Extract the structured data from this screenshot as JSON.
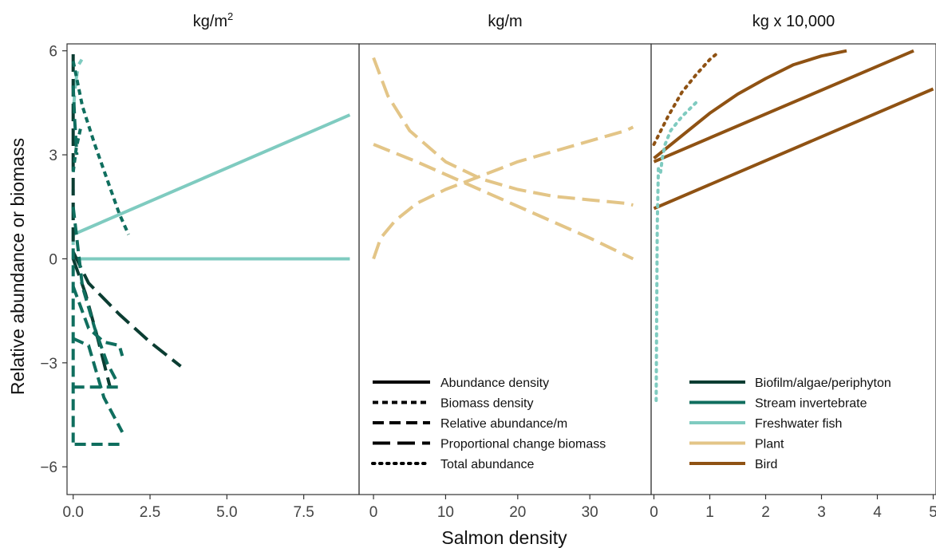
{
  "chart_data": {
    "type": "line",
    "ylabel": "Relative abundance or biomass",
    "xlabel": "Salmon density",
    "ylim": [
      -6.8,
      6.2
    ],
    "yticks": [
      -6,
      -3,
      0,
      3,
      6
    ],
    "yticklabels": [
      "−6",
      "−3",
      "0",
      "3",
      "6"
    ],
    "grid": false,
    "colors": {
      "Biofilm/algae/periphyton": "#0b3d32",
      "Stream invertebrate": "#0f6e5e",
      "Freshwater fish": "#7fcbc0",
      "Plant": "#e3c587",
      "Bird": "#8f5213"
    },
    "legend_linetype": {
      "entries": [
        {
          "label": "Abundance density",
          "dash": "solid"
        },
        {
          "label": "Biomass density",
          "dash": "short"
        },
        {
          "label": "Relative abundance/m",
          "dash": "dashed"
        },
        {
          "label": "Proportional change biomass",
          "dash": "longdash"
        },
        {
          "label": "Total abundance",
          "dash": "dotted"
        }
      ]
    },
    "legend_color": {
      "entries": [
        {
          "label": "Biofilm/algae/periphyton",
          "color": "#0b3d32"
        },
        {
          "label": "Stream invertebrate",
          "color": "#0f6e5e"
        },
        {
          "label": "Freshwater fish",
          "color": "#7fcbc0"
        },
        {
          "label": "Plant",
          "color": "#e3c587"
        },
        {
          "label": "Bird",
          "color": "#8f5213"
        }
      ]
    },
    "panels": [
      {
        "title_base": "kg/m",
        "title_sup": "2",
        "xlim": [
          -0.2,
          9.3
        ],
        "xticks": [
          0,
          2.5,
          5,
          7.5
        ],
        "xticklabels": [
          "0.0",
          "2.5",
          "5.0",
          "7.5"
        ],
        "series": [
          {
            "group": "Freshwater fish",
            "dash": "solid",
            "x": [
              0,
              9
            ],
            "y": [
              0.7,
              4.15
            ]
          },
          {
            "group": "Freshwater fish",
            "dash": "solid",
            "x": [
              0,
              9
            ],
            "y": [
              0,
              0
            ]
          },
          {
            "group": "Freshwater fish",
            "dash": "longdash",
            "x": [
              0,
              0.08,
              0.18,
              0.28
            ],
            "y": [
              4.2,
              5.1,
              5.6,
              5.75
            ]
          },
          {
            "group": "Freshwater fish",
            "dash": "longdash",
            "x": [
              0,
              0,
              0
            ],
            "y": [
              0.4,
              1.2,
              2.0
            ]
          },
          {
            "group": "Biofilm/algae/periphyton",
            "dash": "longdash",
            "x": [
              0,
              0,
              0,
              0
            ],
            "y": [
              5.9,
              4.0,
              2.0,
              0.5
            ]
          },
          {
            "group": "Biofilm/algae/periphyton",
            "dash": "longdash",
            "x": [
              0,
              0.5,
              1.5,
              2.5,
              3.5
            ],
            "y": [
              0.2,
              -0.7,
              -1.6,
              -2.4,
              -3.1
            ]
          },
          {
            "group": "Biofilm/algae/periphyton",
            "dash": "longdash",
            "x": [
              0,
              0.4,
              0.8,
              1.2
            ],
            "y": [
              0,
              -1.0,
              -2.3,
              -3.7
            ]
          },
          {
            "group": "Stream invertebrate",
            "dash": "short",
            "x": [
              0,
              0.3,
              0.7,
              1.1,
              1.5,
              1.8
            ],
            "y": [
              5.7,
              4.4,
              3.3,
              2.3,
              1.3,
              0.7
            ]
          },
          {
            "group": "Stream invertebrate",
            "dash": "short",
            "x": [
              0,
              0.1,
              0.25
            ],
            "y": [
              2.5,
              3.2,
              3.8
            ]
          },
          {
            "group": "Stream invertebrate",
            "dash": "dashed",
            "x": [
              0,
              0,
              0,
              0
            ],
            "y": [
              0.3,
              -2,
              -4,
              -5.3
            ]
          },
          {
            "group": "Stream invertebrate",
            "dash": "dashed",
            "x": [
              0.05,
              0.5,
              1.0,
              1.6
            ],
            "y": [
              -5.35,
              -5.35,
              -5.35,
              -5.35
            ]
          },
          {
            "group": "Stream invertebrate",
            "dash": "dashed",
            "x": [
              0,
              0.5,
              1.0,
              1.6
            ],
            "y": [
              -3.7,
              -3.7,
              -3.7,
              -3.7
            ]
          },
          {
            "group": "Stream invertebrate",
            "dash": "dashed",
            "x": [
              0,
              0.5,
              1.0,
              1.6
            ],
            "y": [
              -2.3,
              -2.5,
              -4.0,
              -5.0
            ]
          },
          {
            "group": "Stream invertebrate",
            "dash": "dashed",
            "x": [
              0,
              0.5,
              1.0,
              1.5,
              1.6
            ],
            "y": [
              -0.8,
              -2.0,
              -2.4,
              -2.5,
              -2.8
            ]
          },
          {
            "group": "Stream invertebrate",
            "dash": "dashed",
            "x": [
              0,
              0.3,
              0.7,
              1.1,
              1.4
            ],
            "y": [
              1.5,
              -0.8,
              -2.0,
              -3.0,
              -3.5
            ]
          },
          {
            "group": "Stream invertebrate",
            "dash": "dashed",
            "x": [
              0,
              0.05,
              0.12
            ],
            "y": [
              5.0,
              4.0,
              3.0
            ]
          }
        ]
      },
      {
        "title_base": "kg/m",
        "title_sup": "",
        "xlim": [
          -2,
          38.5
        ],
        "xticks": [
          0,
          10,
          20,
          30
        ],
        "xticklabels": [
          "0",
          "10",
          "20",
          "30"
        ],
        "series": [
          {
            "group": "Plant",
            "dash": "longdash",
            "x": [
              0,
              2,
              5,
              10,
              15,
              20,
              25,
              30,
              35,
              36
            ],
            "y": [
              5.8,
              4.7,
              3.7,
              2.8,
              2.3,
              2.0,
              1.8,
              1.7,
              1.6,
              1.55
            ]
          },
          {
            "group": "Plant",
            "dash": "longdash",
            "x": [
              0,
              6,
              12,
              18,
              24,
              30,
              36
            ],
            "y": [
              3.3,
              2.8,
              2.25,
              1.7,
              1.15,
              0.6,
              0
            ]
          },
          {
            "group": "Plant",
            "dash": "longdash",
            "x": [
              0,
              1,
              3,
              6,
              10,
              15,
              20,
              25,
              30,
              35,
              36
            ],
            "y": [
              0,
              0.6,
              1.1,
              1.6,
              2.0,
              2.4,
              2.8,
              3.1,
              3.4,
              3.7,
              3.8
            ]
          }
        ]
      },
      {
        "title_base": "kg x 10,000",
        "title_sup": "",
        "xlim": [
          -0.05,
          5.05
        ],
        "xticks": [
          0,
          1,
          2,
          3,
          4,
          5
        ],
        "xticklabels": [
          "0",
          "1",
          "2",
          "3",
          "4",
          "5"
        ],
        "series": [
          {
            "group": "Bird",
            "dash": "dotted",
            "x": [
              0,
              0.25,
              0.5,
              0.75,
              1.0,
              1.15
            ],
            "y": [
              3.3,
              4.1,
              4.8,
              5.3,
              5.75,
              5.95
            ]
          },
          {
            "group": "Bird",
            "dash": "solid",
            "x": [
              0,
              0.5,
              1.0,
              1.5,
              2.0,
              2.5,
              3.0,
              3.45
            ],
            "y": [
              2.9,
              3.55,
              4.2,
              4.75,
              5.2,
              5.6,
              5.85,
              6.0
            ]
          },
          {
            "group": "Bird",
            "dash": "solid",
            "x": [
              0,
              4.65
            ],
            "y": [
              2.8,
              6.0
            ]
          },
          {
            "group": "Bird",
            "dash": "solid",
            "x": [
              0,
              5.0
            ],
            "y": [
              1.45,
              4.9
            ]
          },
          {
            "group": "Freshwater fish",
            "dash": "dotted",
            "x": [
              0.75,
              0.5,
              0.3,
              0.2,
              0.15,
              0.12
            ],
            "y": [
              4.5,
              4.1,
              3.7,
              3.3,
              2.9,
              2.5
            ]
          },
          {
            "group": "Freshwater fish",
            "dash": "dotted",
            "x": [
              0.08,
              0.06,
              0.05,
              0.04
            ],
            "y": [
              2.6,
              1.0,
              -1.5,
              -4.2
            ]
          }
        ]
      }
    ]
  }
}
